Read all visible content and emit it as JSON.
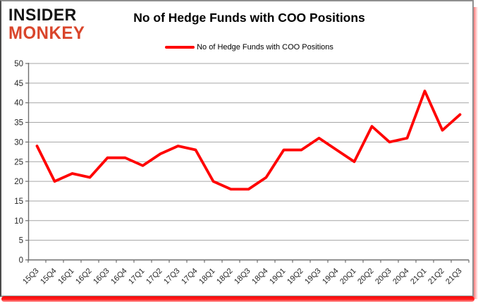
{
  "logo": {
    "line1": "INSIDER",
    "line2": "MONKEY"
  },
  "header": {
    "title": "No of Hedge Funds with COO Positions"
  },
  "legend": {
    "label": "No of Hedge Funds with COO Positions",
    "color": "#ff0000"
  },
  "colors": {
    "line": "#ff0000",
    "grid": "#a6a6a6",
    "axis": "#6e6e6e",
    "tick_label": "#262626",
    "logo_black": "#141414",
    "logo_red": "#d9452b",
    "shadow_red": "#ff0000",
    "card_border": "#8f8f8f"
  },
  "chart_data": {
    "type": "line",
    "title": "No of Hedge Funds with COO Positions",
    "xlabel": "",
    "ylabel": "",
    "categories": [
      "15Q3",
      "15Q4",
      "16Q1",
      "16Q2",
      "16Q3",
      "16Q4",
      "17Q1",
      "17Q2",
      "17Q3",
      "17Q4",
      "18Q1",
      "18Q2",
      "18Q3",
      "18Q4",
      "19Q1",
      "19Q2",
      "19Q3",
      "19Q4",
      "20Q1",
      "20Q2",
      "20Q3",
      "20Q4",
      "21Q1",
      "21Q2",
      "21Q3"
    ],
    "series": [
      {
        "name": "No of Hedge Funds with COO Positions",
        "color": "#ff0000",
        "values": [
          29,
          20,
          22,
          21,
          26,
          26,
          24,
          27,
          29,
          28,
          20,
          18,
          18,
          21,
          28,
          28,
          31,
          28,
          25,
          34,
          30,
          31,
          43,
          33,
          37
        ]
      }
    ],
    "ylim": [
      0,
      50
    ],
    "ytick_step": 5,
    "yticks": [
      0,
      5,
      10,
      15,
      20,
      25,
      30,
      35,
      40,
      45,
      50
    ],
    "grid": true,
    "legend_position": "top-center"
  }
}
